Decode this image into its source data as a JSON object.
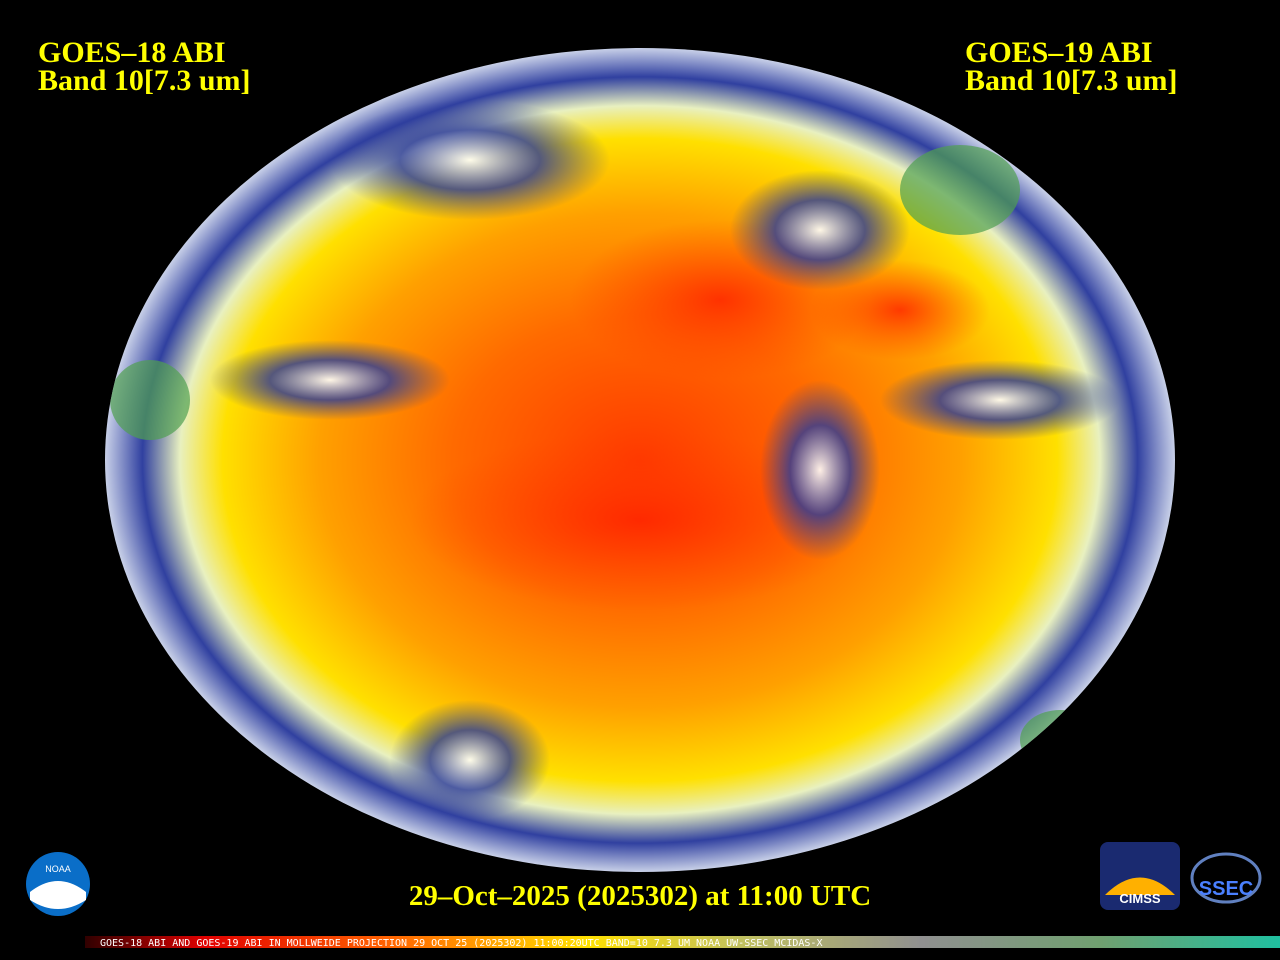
{
  "header": {
    "left_title": "GOES–18 ABI",
    "left_band": "Band 10[7.3 um]",
    "right_title": "GOES–19 ABI",
    "right_band": "Band 10[7.3 um]"
  },
  "timestamp": "29–Oct–2025 (2025302) at 11:00 UTC",
  "logos": {
    "noaa": "NOAA",
    "cimss": "CIMSS",
    "ssec": "SSEC"
  },
  "footer": "GOES-18 ABI AND GOES-19 ABI IN MOLLWEIDE PROJECTION 29 OCT 25 (2025302) 11:00:20UTC BAND=10 7.3 UM NOAA UW-SSEC MCIDAS-X"
}
